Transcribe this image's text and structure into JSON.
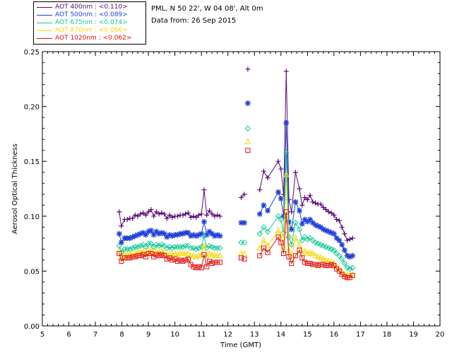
{
  "info": {
    "location": "PML, N 50 22', W 04 08', Alt 0m",
    "date": "Data from: 26 Sep 2015"
  },
  "legend": [
    {
      "text": "AOT  400nm : <0.110>",
      "color": "#5a0a78"
    },
    {
      "text": "AOT  500nm : <0.089>",
      "color": "#1f3fd8"
    },
    {
      "text": "AOT  675nm : <0.074>",
      "color": "#12c896"
    },
    {
      "text": "AOT  870nm : <0.066>",
      "color": "#f2d80e"
    },
    {
      "text": "AOT 1020nm : <0.062>",
      "color": "#e01010"
    }
  ],
  "chart_data": {
    "type": "line",
    "title": "",
    "xlabel": "Time (GMT)",
    "ylabel": "Aerosol Optical Thickness",
    "xlim": [
      5,
      20
    ],
    "ylim": [
      0,
      0.25
    ],
    "xticks": [
      "5",
      "6",
      "7",
      "8",
      "9",
      "10",
      "11",
      "12",
      "13",
      "14",
      "15",
      "16",
      "17",
      "18",
      "19",
      "20"
    ],
    "yticks": [
      "0.00",
      "0.05",
      "0.10",
      "0.15",
      "0.20",
      "0.25"
    ],
    "grid": false,
    "legend_position": "top-left",
    "x_groups": [
      [
        7.9,
        7.98,
        8.1,
        8.2,
        8.3,
        8.4,
        8.5,
        8.6,
        8.7,
        8.8,
        8.9,
        9.0,
        9.1,
        9.2,
        9.3,
        9.4,
        9.5,
        9.6,
        9.7,
        9.8,
        9.9,
        10.0,
        10.1,
        10.2,
        10.3,
        10.4,
        10.5,
        10.6,
        10.7,
        10.8,
        10.9,
        11.0,
        11.1,
        11.2,
        11.3,
        11.4,
        11.5,
        11.6,
        11.7
      ],
      [
        12.5,
        12.62
      ],
      [
        12.75
      ],
      [
        13.2,
        13.35,
        13.5,
        13.9,
        14.0,
        14.1,
        14.2,
        14.3,
        14.4,
        14.55,
        14.7,
        14.8,
        14.9,
        15.0,
        15.1,
        15.2,
        15.3,
        15.4,
        15.5,
        15.6,
        15.7,
        15.8,
        15.9,
        16.0,
        16.1,
        16.2,
        16.3,
        16.4,
        16.5,
        16.6,
        16.7
      ]
    ],
    "series": [
      {
        "name": "AOT  400nm",
        "marker": "plus",
        "color": "#5a0a78",
        "values": [
          [
            0.104,
            0.091,
            0.097,
            0.097,
            0.098,
            0.098,
            0.101,
            0.1,
            0.102,
            0.103,
            0.101,
            0.104,
            0.106,
            0.1,
            0.104,
            0.102,
            0.103,
            0.102,
            0.098,
            0.101,
            0.099,
            0.1,
            0.1,
            0.101,
            0.101,
            0.102,
            0.103,
            0.099,
            0.1,
            0.099,
            0.101,
            0.102,
            0.124,
            0.101,
            0.105,
            0.102,
            0.1,
            0.101,
            0.1
          ],
          [
            0.117,
            0.12
          ],
          [
            0.234
          ],
          [
            0.124,
            0.141,
            0.135,
            0.15,
            0.143,
            0.12,
            0.232,
            0.115,
            0.104,
            0.14,
            0.125,
            0.11,
            0.117,
            0.115,
            0.119,
            0.113,
            0.112,
            0.111,
            0.111,
            0.108,
            0.106,
            0.104,
            0.103,
            0.101,
            0.097,
            0.096,
            0.09,
            0.084,
            0.078,
            0.079,
            0.08
          ]
        ]
      },
      {
        "name": "AOT  500nm",
        "marker": "asterisk",
        "color": "#1f3fd8",
        "values": [
          [
            0.084,
            0.076,
            0.08,
            0.08,
            0.08,
            0.081,
            0.082,
            0.083,
            0.084,
            0.085,
            0.083,
            0.086,
            0.087,
            0.083,
            0.086,
            0.084,
            0.085,
            0.084,
            0.081,
            0.083,
            0.082,
            0.083,
            0.083,
            0.084,
            0.084,
            0.085,
            0.085,
            0.082,
            0.083,
            0.082,
            0.083,
            0.084,
            0.095,
            0.083,
            0.086,
            0.084,
            0.082,
            0.083,
            0.082
          ],
          [
            0.094,
            0.094
          ],
          [
            0.203
          ],
          [
            0.102,
            0.11,
            0.105,
            0.122,
            0.116,
            0.1,
            0.185,
            0.095,
            0.088,
            0.113,
            0.105,
            0.093,
            0.097,
            0.095,
            0.097,
            0.094,
            0.092,
            0.091,
            0.09,
            0.088,
            0.087,
            0.086,
            0.085,
            0.084,
            0.08,
            0.078,
            0.074,
            0.069,
            0.064,
            0.063,
            0.064
          ]
        ]
      },
      {
        "name": "AOT  675nm",
        "marker": "diamond",
        "color": "#12c896",
        "values": [
          [
            0.073,
            0.067,
            0.07,
            0.07,
            0.07,
            0.071,
            0.072,
            0.072,
            0.073,
            0.074,
            0.072,
            0.075,
            0.075,
            0.072,
            0.074,
            0.073,
            0.074,
            0.073,
            0.071,
            0.072,
            0.071,
            0.072,
            0.072,
            0.072,
            0.072,
            0.073,
            0.073,
            0.071,
            0.071,
            0.07,
            0.071,
            0.072,
            0.082,
            0.071,
            0.073,
            0.072,
            0.071,
            0.071,
            0.071
          ],
          [
            0.076,
            0.076
          ],
          [
            0.18
          ],
          [
            0.084,
            0.09,
            0.086,
            0.1,
            0.097,
            0.085,
            0.158,
            0.081,
            0.074,
            0.094,
            0.088,
            0.078,
            0.081,
            0.079,
            0.08,
            0.078,
            0.076,
            0.075,
            0.074,
            0.073,
            0.072,
            0.071,
            0.07,
            0.069,
            0.066,
            0.064,
            0.061,
            0.057,
            0.053,
            0.052,
            0.053
          ]
        ]
      },
      {
        "name": "AOT  870nm",
        "marker": "triangle",
        "color": "#f2d80e",
        "values": [
          [
            0.068,
            0.062,
            0.065,
            0.065,
            0.065,
            0.066,
            0.066,
            0.067,
            0.067,
            0.068,
            0.066,
            0.069,
            0.069,
            0.066,
            0.068,
            0.067,
            0.068,
            0.067,
            0.065,
            0.066,
            0.065,
            0.066,
            0.065,
            0.066,
            0.066,
            0.066,
            0.066,
            0.064,
            0.064,
            0.063,
            0.064,
            0.065,
            0.073,
            0.064,
            0.066,
            0.065,
            0.064,
            0.064,
            0.064
          ],
          [
            0.066,
            0.066
          ],
          [
            0.168
          ],
          [
            0.071,
            0.078,
            0.073,
            0.087,
            0.083,
            0.072,
            0.138,
            0.069,
            0.063,
            0.08,
            0.074,
            0.066,
            0.068,
            0.066,
            0.067,
            0.066,
            0.064,
            0.063,
            0.062,
            0.061,
            0.06,
            0.059,
            0.058,
            0.057,
            0.054,
            0.052,
            0.049,
            0.047,
            0.046,
            0.046,
            0.047
          ]
        ]
      },
      {
        "name": "AOT 1020nm",
        "marker": "square",
        "color": "#e01010",
        "values": [
          [
            0.066,
            0.059,
            0.062,
            0.062,
            0.062,
            0.063,
            0.063,
            0.064,
            0.064,
            0.065,
            0.063,
            0.066,
            0.066,
            0.063,
            0.065,
            0.064,
            0.065,
            0.064,
            0.061,
            0.062,
            0.06,
            0.061,
            0.059,
            0.06,
            0.059,
            0.06,
            0.061,
            0.056,
            0.054,
            0.053,
            0.054,
            0.053,
            0.065,
            0.054,
            0.059,
            0.057,
            0.058,
            0.058,
            0.058
          ],
          [
            0.062,
            0.061
          ],
          [
            0.16
          ],
          [
            0.064,
            0.071,
            0.067,
            0.081,
            0.076,
            0.066,
            0.104,
            0.063,
            0.057,
            0.064,
            0.069,
            0.062,
            0.058,
            0.057,
            0.057,
            0.056,
            0.056,
            0.055,
            0.056,
            0.056,
            0.055,
            0.055,
            0.056,
            0.055,
            0.052,
            0.05,
            0.047,
            0.045,
            0.044,
            0.044,
            0.046
          ]
        ]
      }
    ]
  }
}
